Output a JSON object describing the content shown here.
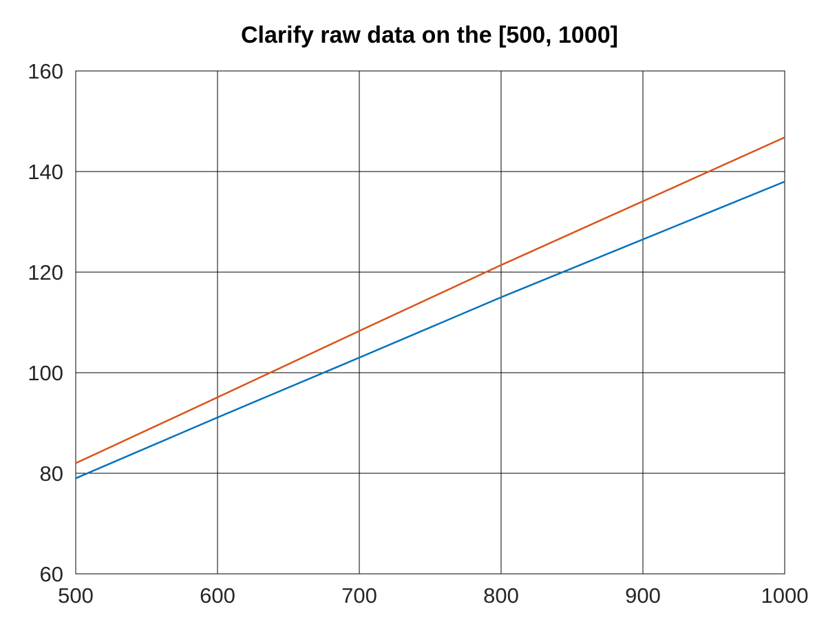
{
  "chart_data": {
    "type": "line",
    "title": "Clarify raw data on the [500, 1000]",
    "xlabel": "",
    "ylabel": "",
    "xlim": [
      500,
      1000
    ],
    "ylim": [
      60,
      160
    ],
    "xticks": [
      "500",
      "600",
      "700",
      "800",
      "900",
      "1000"
    ],
    "yticks": [
      "60",
      "80",
      "100",
      "120",
      "140",
      "160"
    ],
    "grid": true,
    "legend": "none",
    "series": [
      {
        "color": "#d95319",
        "x": [
          500,
          600,
          700,
          800,
          900,
          1000
        ],
        "y": [
          82,
          95.1,
          108.3,
          121.4,
          134.1,
          146.8
        ]
      },
      {
        "color": "#0072bd",
        "x": [
          500,
          600,
          700,
          800,
          900,
          1000
        ],
        "y": [
          79,
          91.1,
          103,
          115,
          126.5,
          138
        ]
      }
    ]
  }
}
